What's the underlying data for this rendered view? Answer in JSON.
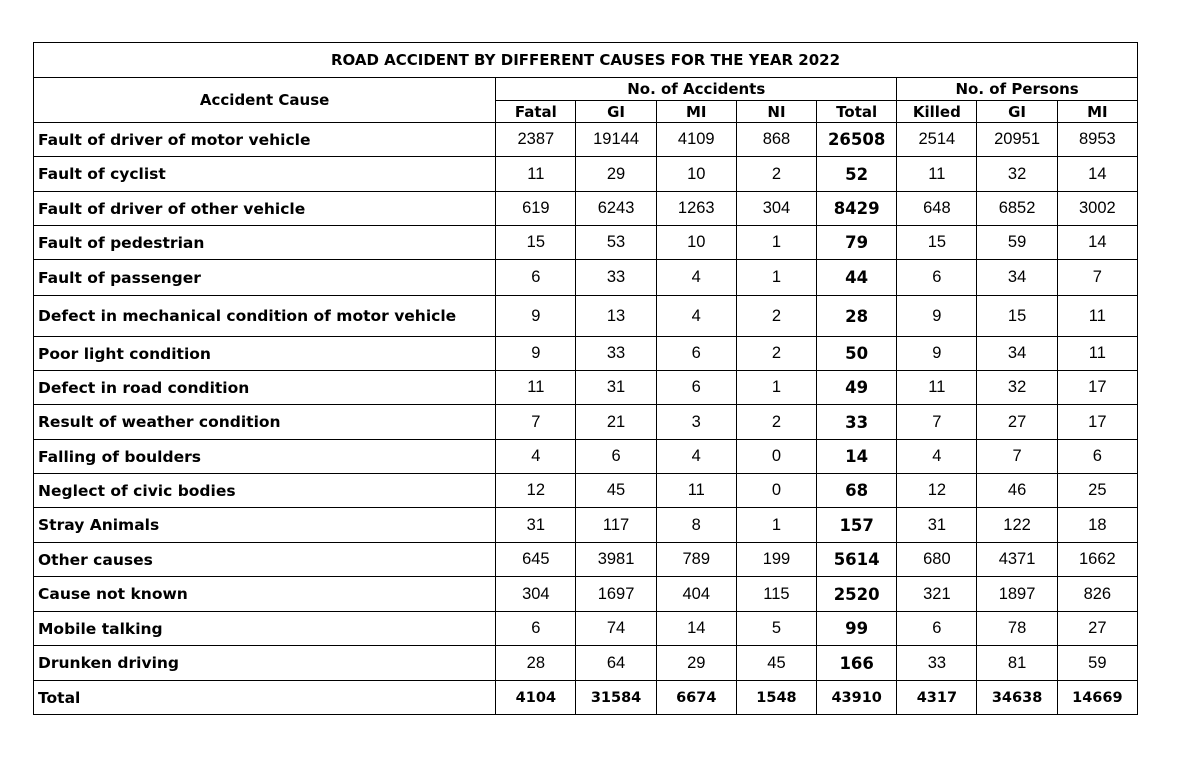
{
  "title": "ROAD ACCIDENT BY DIFFERENT CAUSES FOR THE YEAR 2022",
  "headers": {
    "cause": "Accident Cause",
    "group_accidents": "No. of Accidents",
    "group_persons": "No. of Persons",
    "accidents": [
      "Fatal",
      "GI",
      "MI",
      "NI",
      "Total"
    ],
    "persons": [
      "Killed",
      "GI",
      "MI"
    ]
  },
  "rows": [
    {
      "cause": "Fault of driver of motor vehicle",
      "v": [
        "2387",
        "19144",
        "4109",
        "868",
        "26508",
        "2514",
        "20951",
        "8953"
      ]
    },
    {
      "cause": "Fault of cyclist",
      "v": [
        "11",
        "29",
        "10",
        "2",
        "52",
        "11",
        "32",
        "14"
      ]
    },
    {
      "cause": "Fault of driver of other vehicle",
      "v": [
        "619",
        "6243",
        "1263",
        "304",
        "8429",
        "648",
        "6852",
        "3002"
      ]
    },
    {
      "cause": "Fault of pedestrian",
      "v": [
        "15",
        "53",
        "10",
        "1",
        "79",
        "15",
        "59",
        "14"
      ]
    },
    {
      "cause": "Fault of passenger",
      "v": [
        "6",
        "33",
        "4",
        "1",
        "44",
        "6",
        "34",
        "7"
      ]
    },
    {
      "cause": "Defect in mechanical condition of motor vehicle",
      "v": [
        "9",
        "13",
        "4",
        "2",
        "28",
        "9",
        "15",
        "11"
      ]
    },
    {
      "cause": "Poor light condition",
      "v": [
        "9",
        "33",
        "6",
        "2",
        "50",
        "9",
        "34",
        "11"
      ]
    },
    {
      "cause": "Defect in road condition",
      "v": [
        "11",
        "31",
        "6",
        "1",
        "49",
        "11",
        "32",
        "17"
      ]
    },
    {
      "cause": "Result of weather condition",
      "v": [
        "7",
        "21",
        "3",
        "2",
        "33",
        "7",
        "27",
        "17"
      ]
    },
    {
      "cause": "Falling of boulders",
      "v": [
        "4",
        "6",
        "4",
        "0",
        "14",
        "4",
        "7",
        "6"
      ]
    },
    {
      "cause": "Neglect of civic bodies",
      "v": [
        "12",
        "45",
        "11",
        "0",
        "68",
        "12",
        "46",
        "25"
      ]
    },
    {
      "cause": "Stray Animals",
      "v": [
        "31",
        "117",
        "8",
        "1",
        "157",
        "31",
        "122",
        "18"
      ]
    },
    {
      "cause": "Other causes",
      "v": [
        "645",
        "3981",
        "789",
        "199",
        "5614",
        "680",
        "4371",
        "1662"
      ]
    },
    {
      "cause": "Cause not known",
      "v": [
        "304",
        "1697",
        "404",
        "115",
        "2520",
        "321",
        "1897",
        "826"
      ]
    },
    {
      "cause": "Mobile talking",
      "v": [
        "6",
        "74",
        "14",
        "5",
        "99",
        "6",
        "78",
        "27"
      ]
    },
    {
      "cause": "Drunken driving",
      "v": [
        "28",
        "64",
        "29",
        "45",
        "166",
        "33",
        "81",
        "59"
      ]
    }
  ],
  "total": {
    "cause": "Total",
    "v": [
      "4104",
      "31584",
      "6674",
      "1548",
      "43910",
      "4317",
      "34638",
      "14669"
    ]
  }
}
